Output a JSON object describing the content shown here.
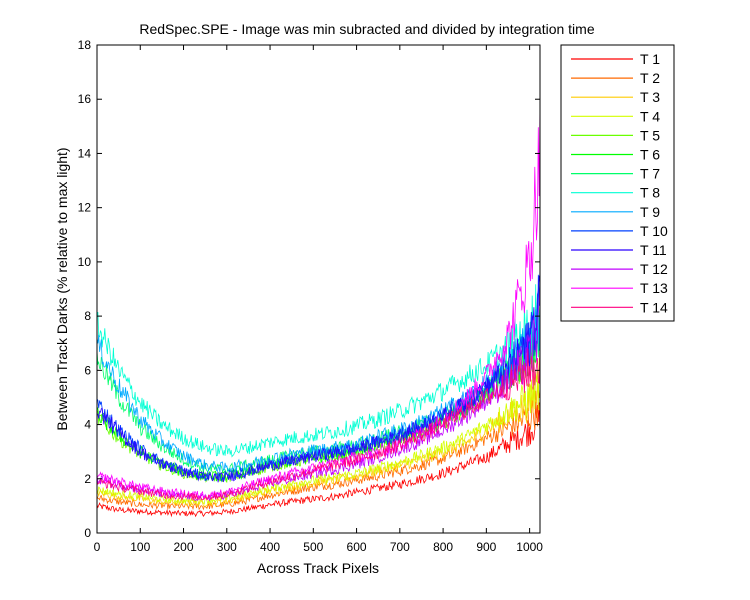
{
  "chart_data": {
    "type": "line",
    "title": "RedSpec.SPE - Image was min subracted and divided by integration time",
    "xlabel": "Across Track Pixels",
    "ylabel": "Between Track Darks (% relative to max light)",
    "xlim": [
      0,
      1024
    ],
    "ylim": [
      0,
      18
    ],
    "xticks": [
      0,
      100,
      200,
      300,
      400,
      500,
      600,
      700,
      800,
      900,
      1000
    ],
    "yticks": [
      0,
      2,
      4,
      6,
      8,
      10,
      12,
      14,
      16,
      18
    ],
    "grid": false,
    "legend_position": "outside-right",
    "x": [
      0,
      50,
      100,
      150,
      200,
      250,
      300,
      350,
      400,
      450,
      500,
      550,
      600,
      650,
      700,
      750,
      800,
      850,
      900,
      950,
      1000,
      1024
    ],
    "series": [
      {
        "name": "T 1",
        "color": "#ff0000",
        "values": [
          1.0,
          0.85,
          0.8,
          0.75,
          0.72,
          0.72,
          0.78,
          0.9,
          1.05,
          1.15,
          1.25,
          1.35,
          1.5,
          1.65,
          1.8,
          2.0,
          2.2,
          2.5,
          2.8,
          3.3,
          3.8,
          4.3
        ]
      },
      {
        "name": "T 2",
        "color": "#ff6a00",
        "values": [
          1.3,
          1.15,
          1.05,
          1.0,
          0.98,
          0.98,
          1.05,
          1.2,
          1.4,
          1.55,
          1.7,
          1.8,
          1.95,
          2.1,
          2.3,
          2.5,
          2.75,
          3.1,
          3.5,
          3.9,
          4.3,
          4.8
        ]
      },
      {
        "name": "T 3",
        "color": "#ffcc00",
        "values": [
          1.5,
          1.35,
          1.25,
          1.15,
          1.12,
          1.1,
          1.18,
          1.35,
          1.55,
          1.7,
          1.85,
          1.95,
          2.1,
          2.3,
          2.5,
          2.7,
          3.0,
          3.3,
          3.8,
          4.3,
          4.8,
          5.3
        ]
      },
      {
        "name": "T 4",
        "color": "#d4ff00",
        "values": [
          1.6,
          1.45,
          1.35,
          1.25,
          1.2,
          1.2,
          1.28,
          1.45,
          1.65,
          1.8,
          1.95,
          2.05,
          2.2,
          2.4,
          2.6,
          2.85,
          3.15,
          3.5,
          4.0,
          4.5,
          5.0,
          5.6
        ]
      },
      {
        "name": "T 5",
        "color": "#6aff00",
        "values": [
          4.3,
          3.5,
          2.9,
          2.5,
          2.2,
          2.05,
          2.05,
          2.2,
          2.45,
          2.6,
          2.75,
          2.85,
          3.0,
          3.2,
          3.45,
          3.7,
          4.1,
          4.5,
          5.1,
          5.8,
          6.6,
          7.5
        ]
      },
      {
        "name": "T 6",
        "color": "#00ff00",
        "values": [
          4.4,
          3.6,
          3.0,
          2.55,
          2.25,
          2.1,
          2.1,
          2.25,
          2.5,
          2.65,
          2.8,
          2.9,
          3.05,
          3.25,
          3.5,
          3.75,
          4.15,
          4.6,
          5.2,
          5.9,
          6.7,
          7.6
        ]
      },
      {
        "name": "T 7",
        "color": "#00ff6a",
        "values": [
          6.5,
          5.0,
          3.9,
          3.2,
          2.7,
          2.4,
          2.35,
          2.5,
          2.7,
          2.85,
          3.0,
          3.1,
          3.25,
          3.45,
          3.7,
          3.95,
          4.3,
          4.7,
          5.3,
          6.0,
          6.8,
          7.7
        ]
      },
      {
        "name": "T 8",
        "color": "#00ffd4",
        "values": [
          7.7,
          6.0,
          4.8,
          4.0,
          3.5,
          3.15,
          3.0,
          3.15,
          3.35,
          3.5,
          3.6,
          3.75,
          3.95,
          4.2,
          4.5,
          4.85,
          5.25,
          5.7,
          6.2,
          6.8,
          7.6,
          8.5
        ]
      },
      {
        "name": "T 9",
        "color": "#00aaff",
        "values": [
          7.0,
          5.4,
          4.2,
          3.4,
          2.85,
          2.5,
          2.4,
          2.55,
          2.75,
          2.9,
          3.05,
          3.15,
          3.3,
          3.55,
          3.8,
          4.1,
          4.5,
          4.95,
          5.5,
          6.2,
          7.0,
          8.0
        ]
      },
      {
        "name": "T 10",
        "color": "#0040ff",
        "values": [
          4.8,
          3.8,
          3.1,
          2.6,
          2.3,
          2.1,
          2.1,
          2.3,
          2.55,
          2.7,
          2.85,
          3.0,
          3.15,
          3.4,
          3.65,
          3.95,
          4.35,
          4.8,
          5.4,
          6.1,
          7.0,
          8.5
        ]
      },
      {
        "name": "T 11",
        "color": "#2a00ff",
        "values": [
          4.6,
          3.7,
          3.0,
          2.55,
          2.25,
          2.05,
          2.05,
          2.25,
          2.5,
          2.65,
          2.8,
          2.95,
          3.1,
          3.35,
          3.6,
          3.9,
          4.3,
          4.75,
          5.35,
          6.05,
          7.0,
          9.0
        ]
      },
      {
        "name": "T 12",
        "color": "#c000ff",
        "values": [
          2.0,
          1.8,
          1.6,
          1.45,
          1.35,
          1.3,
          1.4,
          1.6,
          1.85,
          2.0,
          2.2,
          2.35,
          2.55,
          2.8,
          3.1,
          3.4,
          3.8,
          4.3,
          4.9,
          5.6,
          6.5,
          7.8
        ]
      },
      {
        "name": "T 13",
        "color": "#ff00ff",
        "values": [
          2.1,
          1.9,
          1.7,
          1.55,
          1.45,
          1.4,
          1.5,
          1.75,
          2.0,
          2.2,
          2.4,
          2.6,
          2.8,
          3.0,
          3.3,
          3.7,
          4.2,
          4.9,
          5.8,
          7.2,
          10.0,
          14.0
        ]
      },
      {
        "name": "T 14",
        "color": "#ff0080",
        "values": [
          1.9,
          1.7,
          1.55,
          1.42,
          1.35,
          1.32,
          1.42,
          1.65,
          1.9,
          2.1,
          2.3,
          2.5,
          2.7,
          2.95,
          3.25,
          3.6,
          4.0,
          4.5,
          5.0,
          5.5,
          6.0,
          6.3
        ]
      }
    ]
  }
}
